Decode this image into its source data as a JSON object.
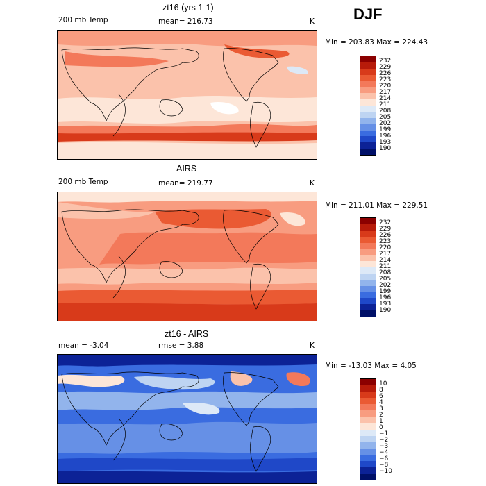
{
  "season": "DJF",
  "panels": [
    {
      "id": "model",
      "title": "zt16 (yrs 1-1)",
      "left_label": "200 mb Temp",
      "center_label": "mean= 216.73",
      "units": "K",
      "minmax": "Min = 203.83 Max = 224.43",
      "scale": [
        "232",
        "229",
        "226",
        "223",
        "220",
        "217",
        "214",
        "211",
        "208",
        "205",
        "202",
        "199",
        "196",
        "193",
        "190"
      ]
    },
    {
      "id": "obs",
      "title": "AIRS",
      "left_label": "200 mb Temp",
      "center_label": "mean= 219.77",
      "units": "K",
      "minmax": "Min = 211.01 Max = 229.51",
      "scale": [
        "232",
        "229",
        "226",
        "223",
        "220",
        "217",
        "214",
        "211",
        "208",
        "205",
        "202",
        "199",
        "196",
        "193",
        "190"
      ]
    },
    {
      "id": "diff",
      "title": "zt16 - AIRS",
      "left_label": "mean =   -3.04",
      "center_label": "rmse =   3.88",
      "units": "K",
      "minmax": "Min = -13.03 Max =   4.05",
      "scale": [
        "10",
        "8",
        "6",
        "4",
        "3",
        "2",
        "1",
        "0",
        "−1",
        "−2",
        "−3",
        "−4",
        "−6",
        "−8",
        "−10"
      ]
    }
  ],
  "colors": {
    "ramp": [
      "#8b0000",
      "#b71b0a",
      "#d83a1a",
      "#ea5a33",
      "#f3795a",
      "#f89c80",
      "#fbc2ab",
      "#fde6d8",
      "#dde9f7",
      "#bed4f2",
      "#92b4ec",
      "#6690e6",
      "#3a6ce0",
      "#1f48c8",
      "#0c2296",
      "#001068"
    ]
  }
}
